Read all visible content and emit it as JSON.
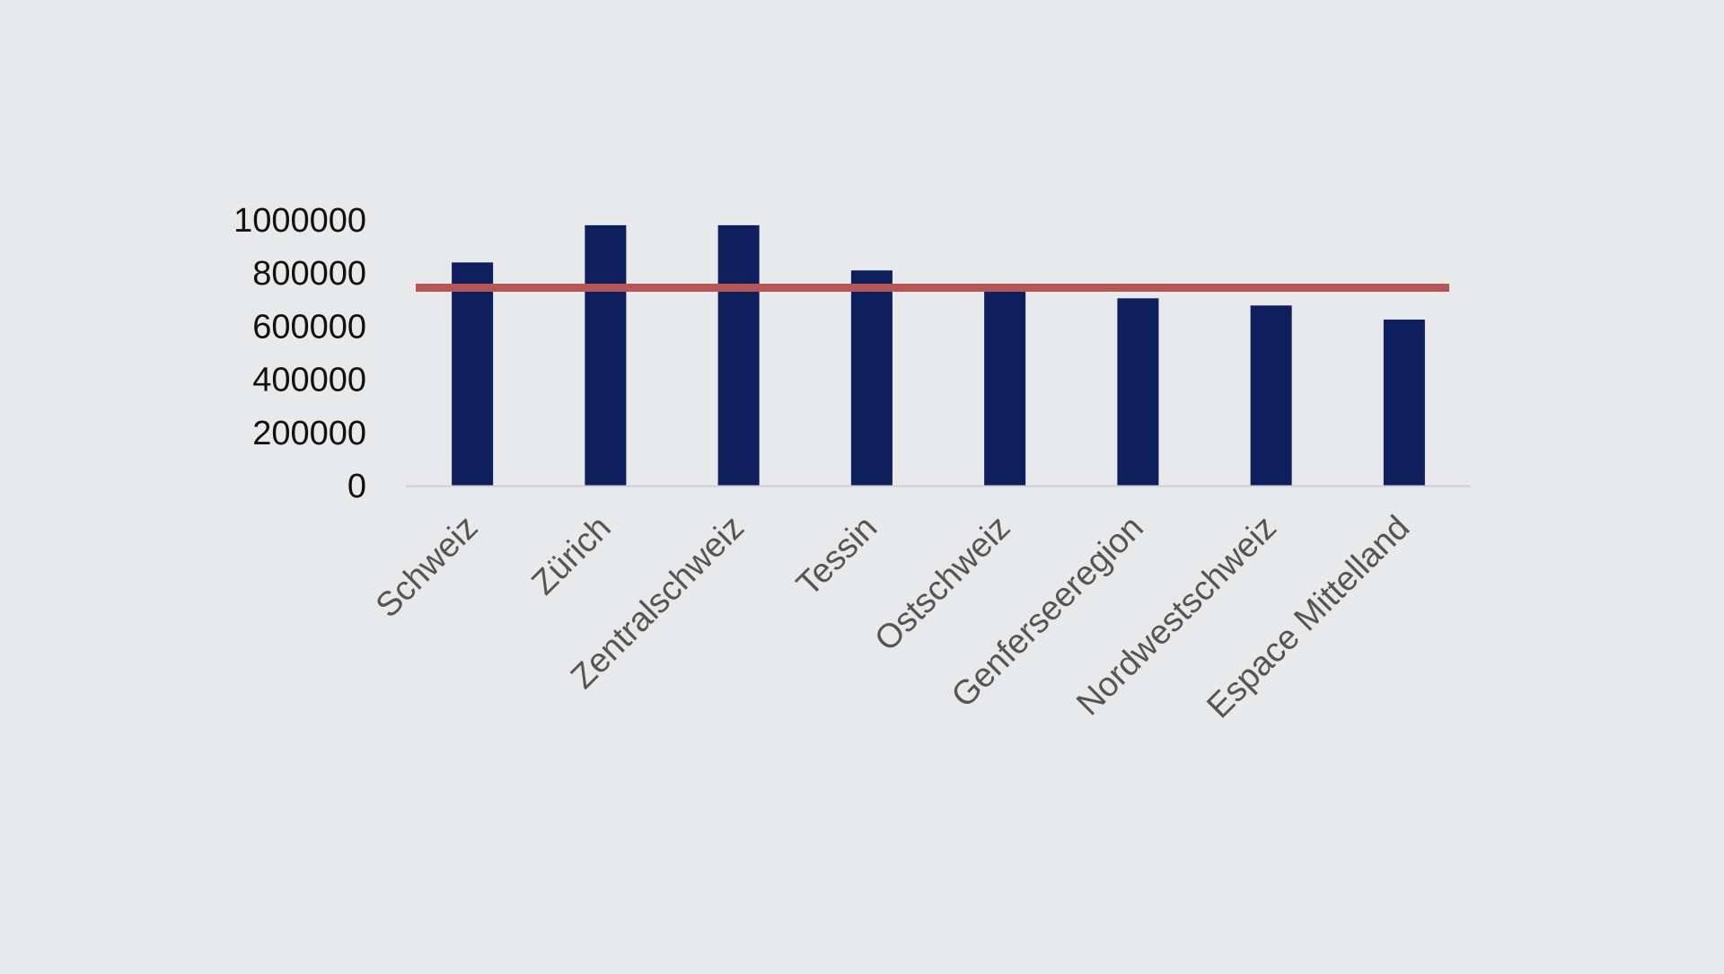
{
  "chart_data": {
    "type": "bar",
    "categories": [
      "Schweiz",
      "Zürich",
      "Zentralschweiz",
      "Tessin",
      "Ostschweiz",
      "Genferseeregion",
      "Nordwestschweiz",
      "Espace Mittelland"
    ],
    "values": [
      840000,
      980000,
      980000,
      810000,
      730000,
      705000,
      678000,
      625000
    ],
    "ylim": [
      0,
      1000000
    ],
    "yticks": [
      "0",
      "200000",
      "400000",
      "600000",
      "800000",
      "1000000"
    ],
    "reference_line": 745000,
    "grid": false,
    "legend": "none",
    "colors": {
      "bar": "#0d1f5c",
      "reference_line": "#b85656",
      "axis": "#cfd0d3"
    }
  }
}
